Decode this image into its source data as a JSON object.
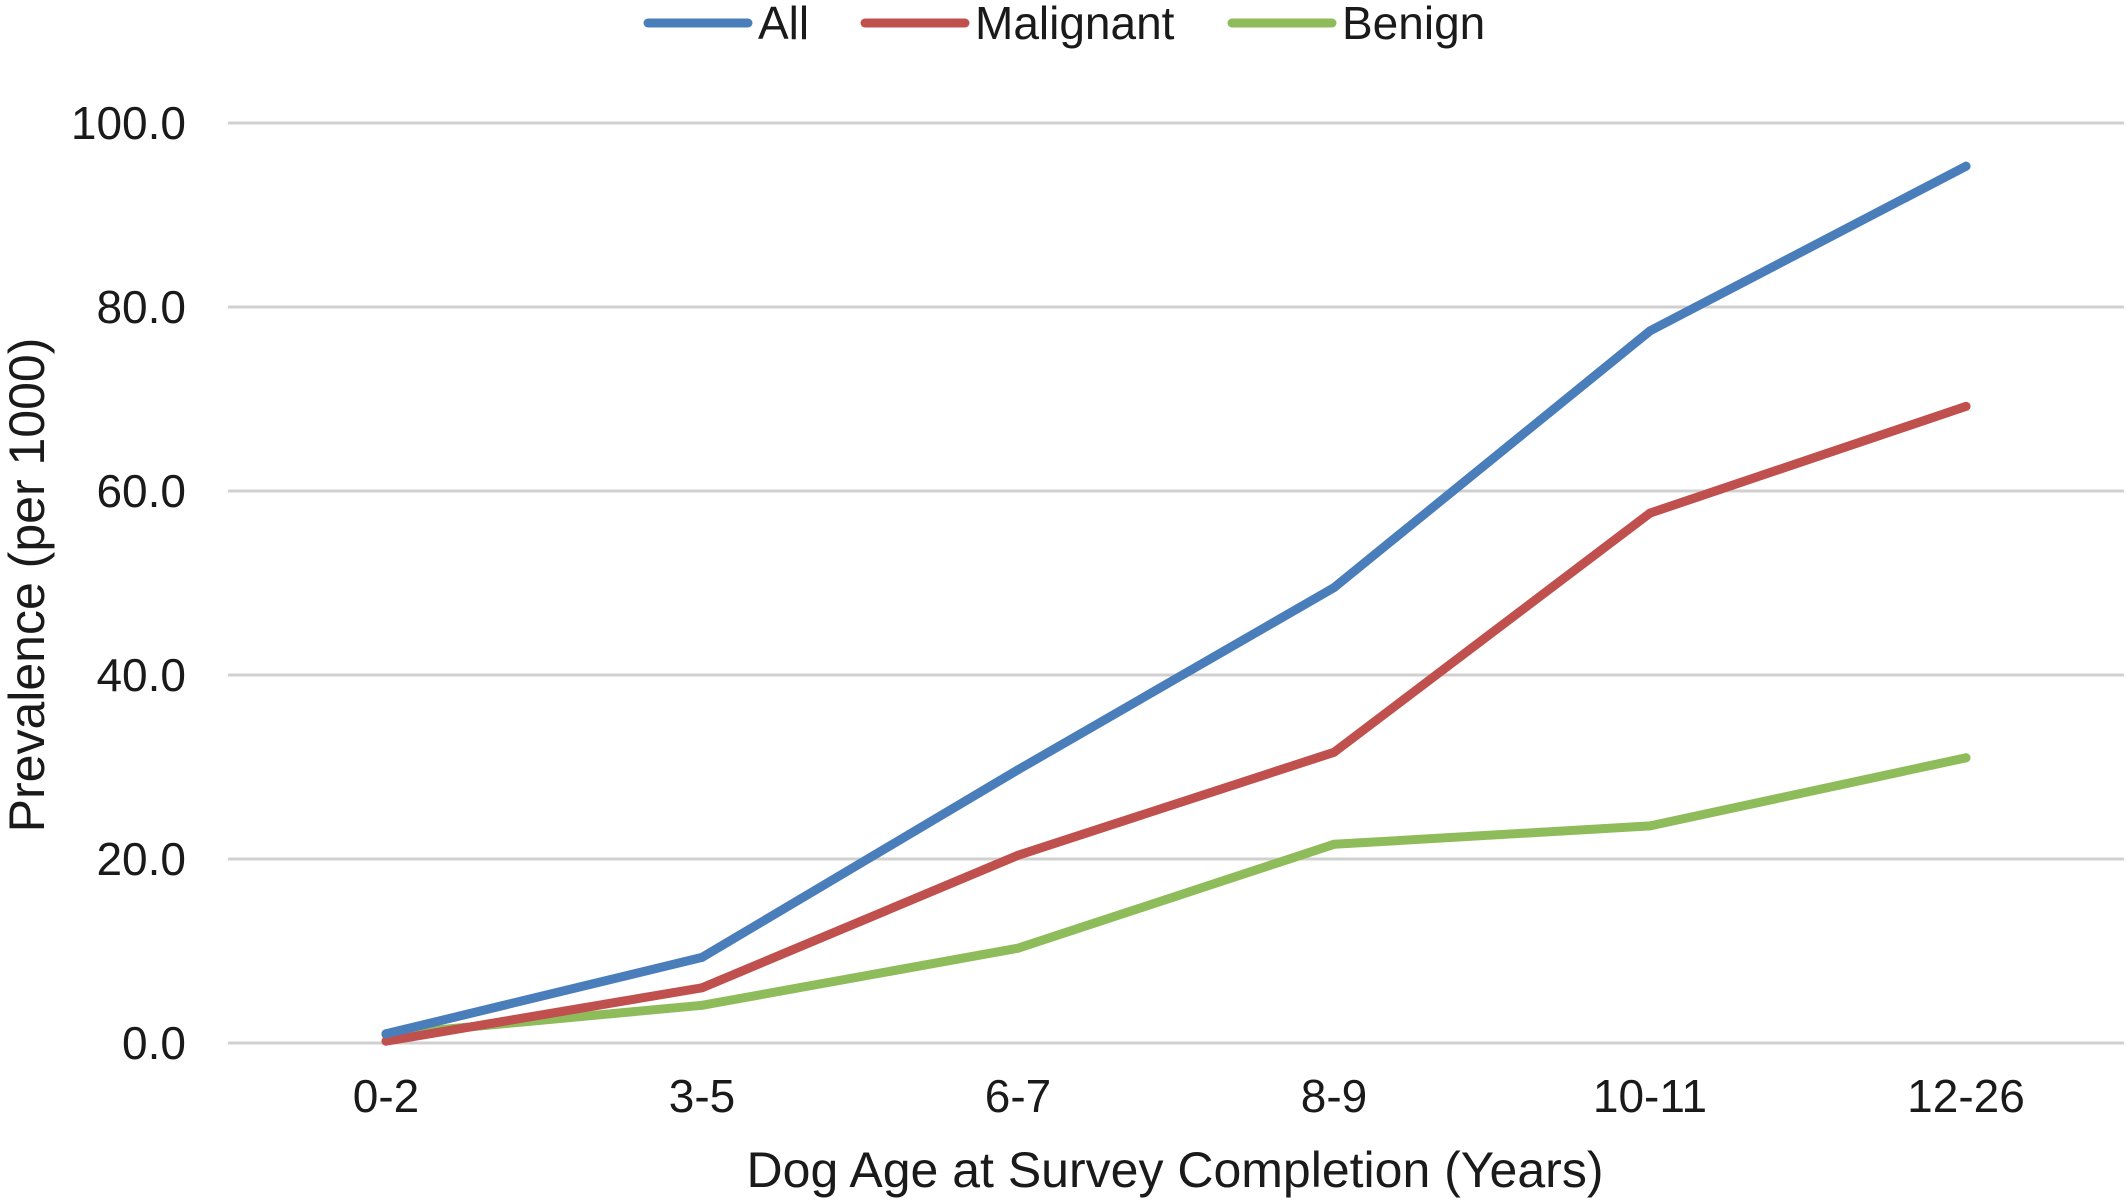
{
  "chart_data": {
    "type": "line",
    "title": "",
    "xlabel": "Dog Age at Survey Completion (Years)",
    "ylabel": "Prevalence (per 1000)",
    "ylim": [
      0,
      100
    ],
    "yticks": [
      "0.0",
      "20.0",
      "40.0",
      "60.0",
      "80.0",
      "100.0"
    ],
    "grid": true,
    "legend_position": "top",
    "categories": [
      "0-2",
      "3-5",
      "6-7",
      "8-9",
      "10-11",
      "12-26"
    ],
    "series": [
      {
        "name": "All",
        "color": "#4a7ebb",
        "values": [
          1.0,
          9.3,
          29.7,
          49.5,
          77.4,
          95.3
        ]
      },
      {
        "name": "Malignant",
        "color": "#c0504d",
        "values": [
          0.2,
          6.0,
          20.4,
          31.6,
          57.6,
          69.2
        ]
      },
      {
        "name": "Benign",
        "color": "#8fbc5a",
        "values": [
          0.9,
          4.1,
          10.3,
          21.6,
          23.6,
          31.0
        ]
      }
    ]
  }
}
